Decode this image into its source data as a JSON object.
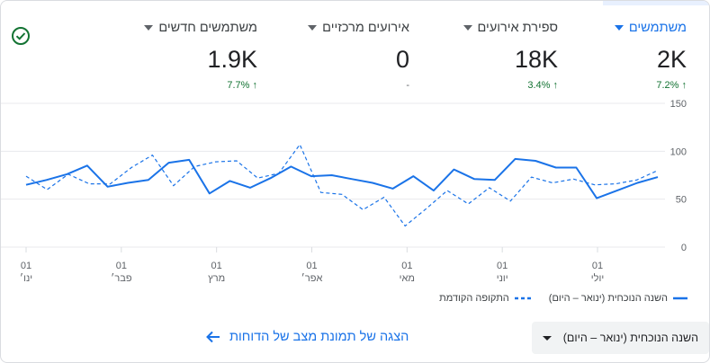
{
  "metrics": [
    {
      "label": "משתמשים",
      "value": "2K",
      "change": "7.2%",
      "active": true
    },
    {
      "label": "ספירת אירועים",
      "value": "18K",
      "change": "3.4%"
    },
    {
      "label": "אירועים מרכזיים",
      "value": "0",
      "change": "-"
    },
    {
      "label": "משתמשים חדשים",
      "value": "1.9K",
      "change": "7.7%"
    }
  ],
  "chart_data": {
    "type": "line",
    "ylim": [
      0,
      150
    ],
    "y_ticks": [
      "150",
      "100",
      "50",
      "0"
    ],
    "x_ticks": [
      {
        "day": "01",
        "month": "ינו׳"
      },
      {
        "day": "01",
        "month": "פבר׳"
      },
      {
        "day": "01",
        "month": "מרץ"
      },
      {
        "day": "01",
        "month": "אפר׳"
      },
      {
        "day": "01",
        "month": "מאי"
      },
      {
        "day": "01",
        "month": "יוני"
      },
      {
        "day": "01",
        "month": "יולי"
      }
    ],
    "series": [
      {
        "name": "השנה הנוכחית (ינואר – היום)",
        "style": "solid",
        "color": "#1a73e8",
        "values": [
          65,
          70,
          76,
          85,
          63,
          67,
          70,
          88,
          91,
          56,
          69,
          62,
          72,
          84,
          74,
          75,
          71,
          67,
          61,
          74,
          59,
          81,
          71,
          70,
          92,
          90,
          83,
          83,
          51,
          59,
          67,
          73
        ]
      },
      {
        "name": "התקופה הקודמת",
        "style": "dashed",
        "color": "#1a73e8",
        "values": [
          74,
          60,
          76,
          66,
          66,
          83,
          96,
          64,
          84,
          89,
          90,
          72,
          77,
          107,
          57,
          55,
          39,
          52,
          22,
          40,
          59,
          45,
          62,
          48,
          73,
          67,
          71,
          65,
          66,
          70,
          80
        ]
      }
    ],
    "grid": true
  },
  "date_range": "השנה הנוכחית (ינואר – היום)",
  "snapshot_link": "הצגה של תמונת מצב של הדוחות",
  "arrow_up": "↑"
}
